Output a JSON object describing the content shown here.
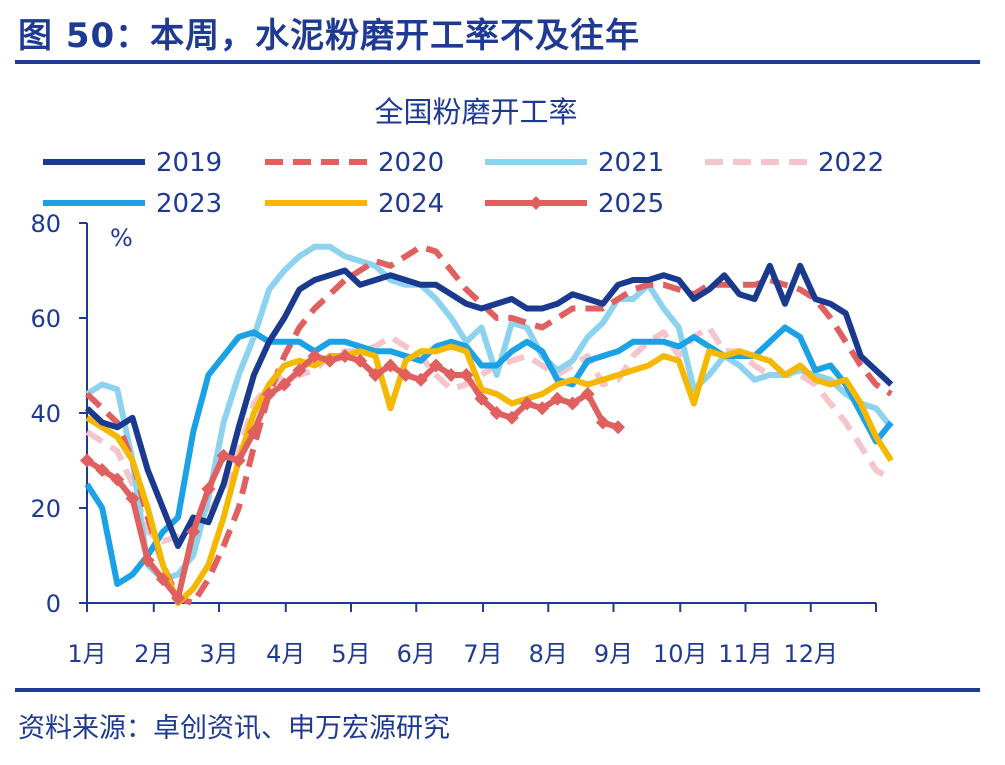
{
  "figure": {
    "title": "图 50：本周，水泥粉磨开工率不及往年",
    "source": "资料来源：卓创资讯、申万宏源研究"
  },
  "chart_data": {
    "type": "line",
    "title": "全国粉磨开工率",
    "ylabel": "%",
    "ylim": [
      0,
      80
    ],
    "yticks": [
      0,
      20,
      40,
      60,
      80
    ],
    "x_range": [
      1,
      53
    ],
    "x_unit": "week",
    "months": [
      "1月",
      "2月",
      "3月",
      "4月",
      "5月",
      "6月",
      "7月",
      "8月",
      "9月",
      "10月",
      "11月",
      "12月"
    ],
    "month_start_weeks": [
      1,
      5.4,
      9.7,
      14.1,
      18.4,
      22.7,
      27.1,
      31.4,
      35.7,
      40.1,
      44.4,
      48.7
    ],
    "legend_placement": "top",
    "grid": false,
    "series": [
      {
        "name": "2019",
        "color": "#1a3a8f",
        "style": "solid",
        "values": [
          41,
          38,
          37,
          39,
          28,
          20,
          12,
          18,
          17,
          25,
          37,
          48,
          55,
          60,
          66,
          68,
          69,
          70,
          67,
          68,
          69,
          68,
          67,
          67,
          65,
          63,
          62,
          63,
          64,
          62,
          62,
          63,
          65,
          64,
          63,
          67,
          68,
          68,
          69,
          68,
          64,
          66,
          69,
          65,
          64,
          71,
          63,
          71,
          64,
          63,
          61,
          52,
          49,
          46
        ]
      },
      {
        "name": "2020",
        "color": "#e06060",
        "style": "dashed",
        "values": [
          44,
          41,
          38,
          30,
          18,
          8,
          1,
          0,
          5,
          12,
          20,
          33,
          44,
          52,
          58,
          62,
          65,
          68,
          70,
          72,
          71,
          73,
          75,
          74,
          70,
          66,
          63,
          60,
          60,
          59,
          58,
          60,
          62,
          62,
          62,
          64,
          66,
          67,
          67,
          66,
          65,
          67,
          67,
          67,
          67,
          68,
          67,
          66,
          64,
          60,
          55,
          50,
          46,
          44
        ]
      },
      {
        "name": "2021",
        "color": "#8dd3f0",
        "style": "solid",
        "values": [
          44,
          46,
          45,
          30,
          8,
          5,
          6,
          10,
          22,
          38,
          48,
          56,
          66,
          70,
          73,
          75,
          75,
          73,
          72,
          71,
          68,
          67,
          67,
          64,
          60,
          55,
          58,
          48,
          59,
          58,
          52,
          49,
          51,
          56,
          59,
          64,
          64,
          67,
          62,
          58,
          45,
          48,
          52,
          50,
          47,
          48,
          48,
          49,
          48,
          47,
          44,
          42,
          41,
          37
        ]
      },
      {
        "name": "2022",
        "color": "#f4c6cc",
        "style": "dashed",
        "values": [
          36,
          34,
          32,
          25,
          15,
          13,
          14,
          17,
          19,
          24,
          32,
          42,
          46,
          48,
          48,
          49,
          52,
          53,
          53,
          54,
          56,
          54,
          52,
          48,
          45,
          46,
          48,
          50,
          51,
          52,
          50,
          48,
          50,
          52,
          46,
          47,
          52,
          55,
          57,
          52,
          56,
          58,
          53,
          53,
          50,
          48,
          48,
          48,
          46,
          42,
          38,
          33,
          28,
          26
        ]
      },
      {
        "name": "2023",
        "color": "#1aa1e6",
        "style": "solid",
        "values": [
          25,
          20,
          4,
          6,
          10,
          15,
          18,
          36,
          48,
          52,
          56,
          57,
          55,
          55,
          55,
          53,
          55,
          55,
          54,
          53,
          53,
          52,
          51,
          54,
          55,
          54,
          50,
          50,
          53,
          55,
          53,
          47,
          46,
          51,
          52,
          53,
          55,
          55,
          55,
          54,
          56,
          54,
          52,
          52,
          52,
          55,
          58,
          56,
          49,
          50,
          46,
          40,
          34,
          38
        ]
      },
      {
        "name": "2024",
        "color": "#f5b800",
        "style": "solid",
        "values": [
          39,
          37,
          35,
          30,
          20,
          8,
          0,
          3,
          8,
          18,
          30,
          40,
          46,
          50,
          51,
          50,
          52,
          52,
          53,
          52,
          41,
          51,
          53,
          53,
          54,
          53,
          45,
          44,
          42,
          43,
          44,
          46,
          47,
          46,
          47,
          48,
          49,
          50,
          52,
          51,
          42,
          53,
          52,
          53,
          52,
          51,
          48,
          50,
          47,
          46,
          47,
          42,
          35,
          30
        ]
      },
      {
        "name": "2025",
        "color": "#e06060",
        "style": "solid",
        "marker": "diamond",
        "values": [
          30,
          28,
          26,
          22,
          9,
          5,
          1,
          15,
          24,
          31,
          30,
          36,
          44,
          46,
          49,
          52,
          51,
          52,
          51,
          48,
          50,
          48,
          47,
          50,
          48,
          48,
          43,
          40,
          39,
          42,
          41,
          43,
          42,
          44,
          38,
          37
        ]
      }
    ]
  }
}
